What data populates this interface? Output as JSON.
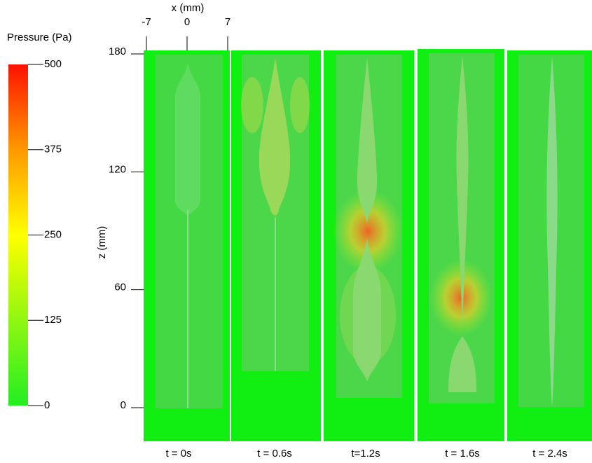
{
  "colorbar": {
    "title": "Pressure (Pa)",
    "lim": [
      0,
      500
    ],
    "ticks": [
      0,
      125,
      250,
      375,
      500
    ]
  },
  "x_axis": {
    "label": "x (mm)",
    "lim": [
      -7,
      7
    ],
    "ticks": [
      -7,
      0,
      7
    ]
  },
  "z_axis": {
    "label": "z (mm)",
    "lim": [
      0,
      180
    ],
    "ticks": [
      0,
      60,
      120,
      180
    ]
  },
  "panels": [
    {
      "label": "t = 0s"
    },
    {
      "label": "t = 0.6s"
    },
    {
      "label": "t=1.2s"
    },
    {
      "label": "t = 1.6s"
    },
    {
      "label": "t = 2.4s"
    }
  ]
}
